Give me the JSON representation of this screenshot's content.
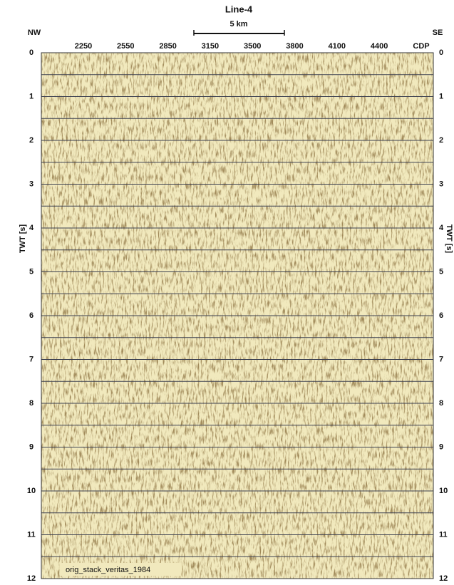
{
  "title": "Line-4",
  "scale_bar": "5 km",
  "left_direction": "NW",
  "right_direction": "SE",
  "x_axis_label": "CDP",
  "cdp_ticks": [
    2250,
    2550,
    2850,
    3150,
    3500,
    3800,
    4100,
    4400
  ],
  "y_axis_label": "TWT [s]",
  "twt_ticks": [
    0,
    1,
    2,
    3,
    4,
    5,
    6,
    7,
    8,
    9,
    10,
    11,
    12
  ],
  "caption": "orig_stack_veritas_1984"
}
